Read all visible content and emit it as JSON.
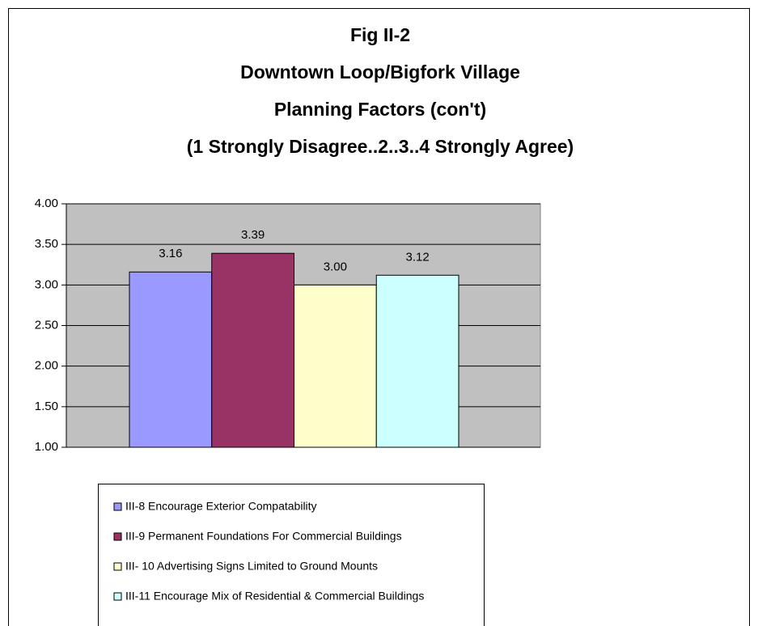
{
  "chart_data": {
    "type": "bar",
    "title": [
      "Fig II-2",
      "Downtown Loop/Bigfork Village",
      "Planning Factors (con't)",
      "(1 Strongly Disagree..2..3..4 Strongly Agree)"
    ],
    "series": [
      {
        "name": "III-8 Encourage Exterior Compatability",
        "color": "#9999ff",
        "values": [
          3.16
        ],
        "value_labels": [
          "3.16"
        ]
      },
      {
        "name": "III-9 Permanent Foundations For Commercial Buildings",
        "color": "#993366",
        "values": [
          3.39
        ],
        "value_labels": [
          "3.39"
        ]
      },
      {
        "name": "III- 10 Advertising Signs Limited to Ground Mounts",
        "color": "#ffffcc",
        "values": [
          3.0
        ],
        "value_labels": [
          "3.00"
        ]
      },
      {
        "name": "III-11 Encourage Mix of Residential & Commercial Buildings",
        "color": "#ccffff",
        "values": [
          3.12
        ],
        "value_labels": [
          "3.12"
        ]
      }
    ],
    "ylim": [
      1,
      4
    ],
    "yticks": [
      {
        "value": 1,
        "label": "1.00"
      },
      {
        "value": 1.5,
        "label": "1.50"
      },
      {
        "value": 2,
        "label": "2.00"
      },
      {
        "value": 2.5,
        "label": "2.50"
      },
      {
        "value": 3,
        "label": "3.00"
      },
      {
        "value": 3.5,
        "label": "3.50"
      },
      {
        "value": 4,
        "label": "4.00"
      }
    ],
    "grid": true,
    "legend": "bottom"
  }
}
